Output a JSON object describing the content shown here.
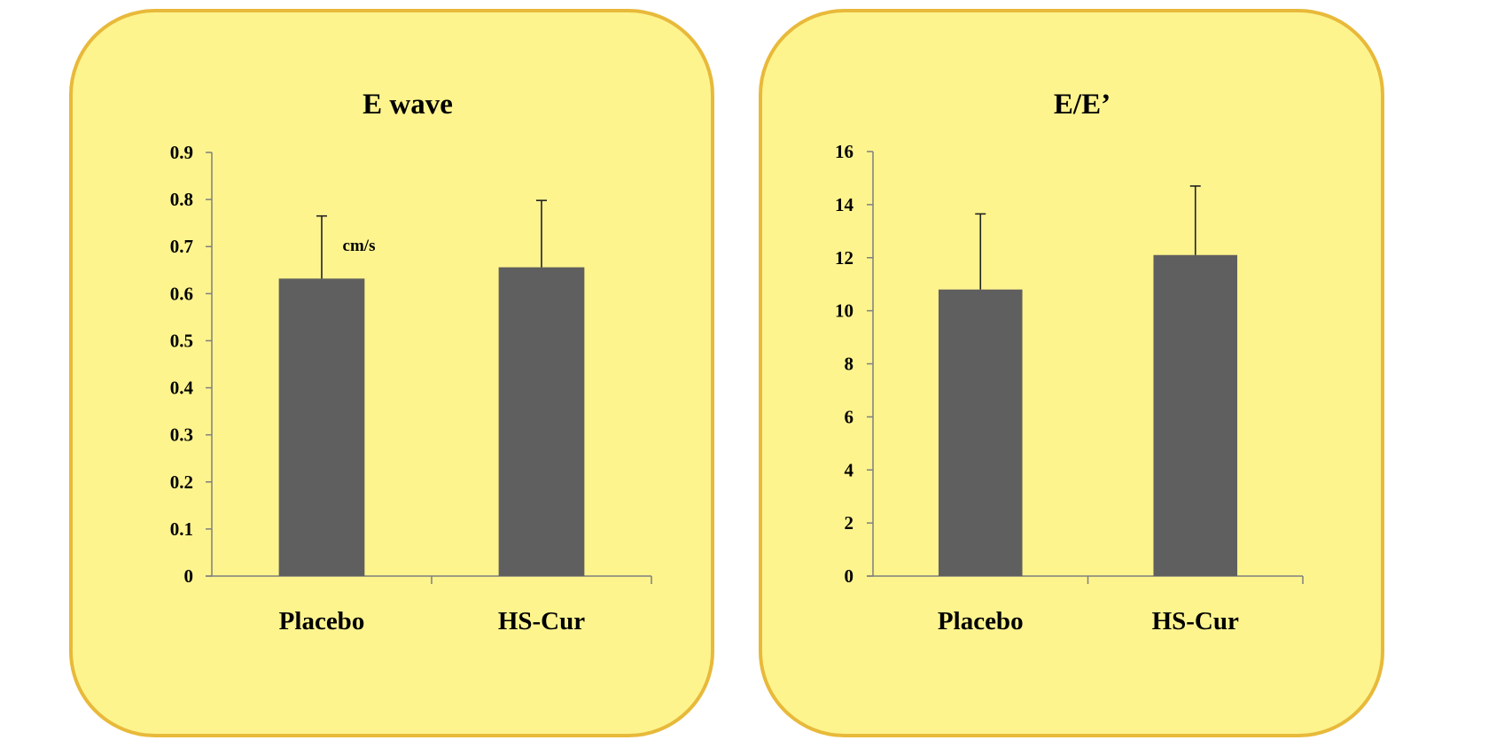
{
  "colors": {
    "panel_fill": "#FEF48E",
    "panel_border": "#E8B93A",
    "bar_fill": "#5F5F5F",
    "axis": "#7F7F7F"
  },
  "chart_data": [
    {
      "type": "bar",
      "title": "E wave",
      "categories": [
        "Placebo",
        "HS-Cur"
      ],
      "series": [
        {
          "values": [
            0.632,
            0.656
          ],
          "error_plus": [
            0.133,
            0.142
          ]
        }
      ],
      "ylim": [
        0,
        0.9
      ],
      "yticks": [
        "0",
        "0.1",
        "0.2",
        "0.3",
        "0.4",
        "0.5",
        "0.6",
        "0.7",
        "0.8",
        "0.9"
      ],
      "annotation": "cm/s",
      "xlabel": "",
      "ylabel": "",
      "grid": false,
      "legend": "none"
    },
    {
      "type": "bar",
      "title": "E/E’",
      "categories": [
        "Placebo",
        "HS-Cur"
      ],
      "series": [
        {
          "values": [
            10.8,
            12.1
          ],
          "error_plus": [
            2.85,
            2.6
          ]
        }
      ],
      "ylim": [
        0,
        16
      ],
      "yticks": [
        "0",
        "2",
        "4",
        "6",
        "8",
        "10",
        "12",
        "14",
        "16"
      ],
      "xlabel": "",
      "ylabel": "",
      "grid": false,
      "legend": "none"
    }
  ]
}
